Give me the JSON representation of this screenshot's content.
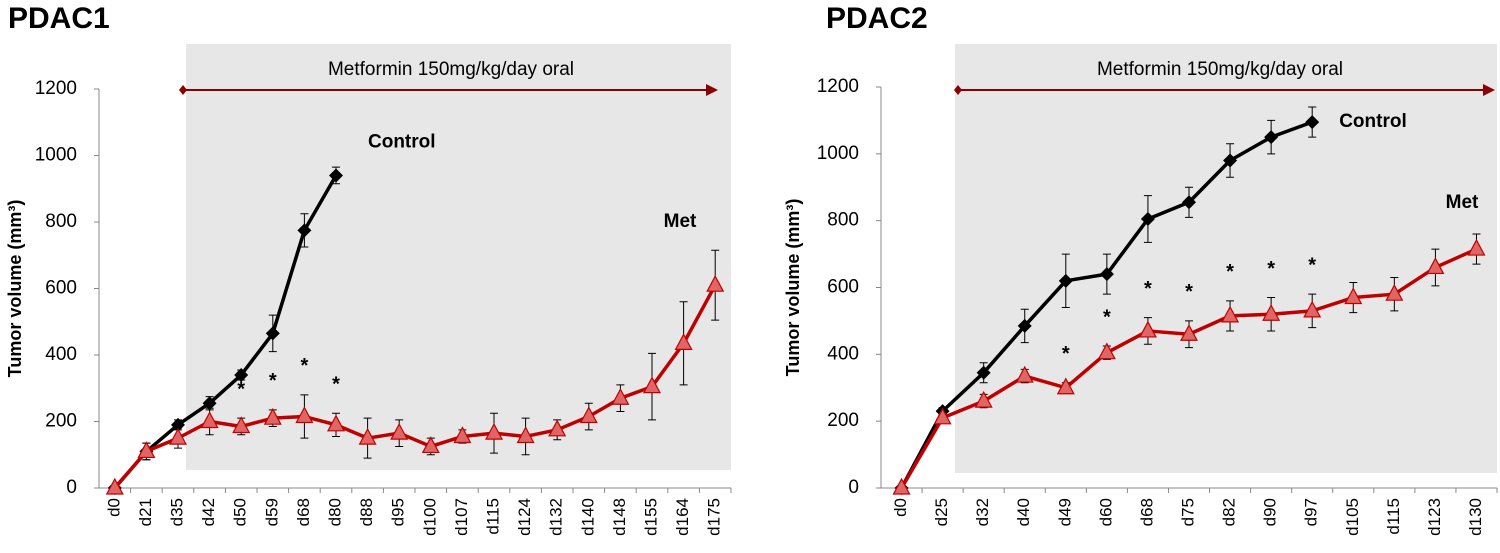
{
  "chart_data": [
    {
      "type": "line",
      "title": "PDAC1",
      "annotation": "Metformin 150mg/kg/day oral",
      "y_label": "Tumor volume (mm³)",
      "categories": [
        "d0",
        "d21",
        "d35",
        "d42",
        "d50",
        "d59",
        "d68",
        "d80",
        "d88",
        "d95",
        "d100",
        "d107",
        "d115",
        "d124",
        "d132",
        "d140",
        "d148",
        "d155",
        "d164",
        "d175"
      ],
      "series": [
        {
          "name": "Control",
          "color": "#000000",
          "marker": "diamond",
          "values": [
            0,
            110,
            190,
            255,
            340,
            465,
            775,
            940,
            null,
            null,
            null,
            null,
            null,
            null,
            null,
            null,
            null,
            null,
            null,
            null
          ],
          "errors": [
            0,
            25,
            15,
            20,
            15,
            55,
            50,
            25,
            null,
            null,
            null,
            null,
            null,
            null,
            null,
            null,
            null,
            null,
            null,
            null
          ]
        },
        {
          "name": "Met",
          "color": "#c00000",
          "marker": "triangle",
          "values": [
            0,
            110,
            150,
            200,
            185,
            210,
            215,
            190,
            150,
            165,
            125,
            155,
            165,
            155,
            175,
            215,
            270,
            305,
            435,
            610
          ],
          "errors": [
            0,
            25,
            30,
            40,
            25,
            25,
            65,
            35,
            60,
            40,
            25,
            20,
            60,
            55,
            30,
            40,
            40,
            100,
            125,
            105
          ]
        }
      ],
      "significance": [
        {
          "category": "d50",
          "label": "*"
        },
        {
          "category": "d59",
          "label": "*"
        },
        {
          "category": "d68",
          "label": "*"
        },
        {
          "category": "d80",
          "label": "*"
        }
      ],
      "ylim": [
        0,
        1200
      ],
      "yticks": [
        0,
        200,
        400,
        600,
        800,
        1000,
        1200
      ],
      "grid": false
    },
    {
      "type": "line",
      "title": "PDAC2",
      "annotation": "Metformin 150mg/kg/day oral",
      "y_label": "Tumor volume (mm³)",
      "categories": [
        "d0",
        "d25",
        "d32",
        "d40",
        "d49",
        "d60",
        "d68",
        "d75",
        "d82",
        "d90",
        "d97",
        "d105",
        "d115",
        "d123",
        "d130"
      ],
      "series": [
        {
          "name": "Control",
          "color": "#000000",
          "marker": "diamond",
          "values": [
            0,
            230,
            345,
            485,
            620,
            640,
            805,
            855,
            980,
            1050,
            1095,
            null,
            null,
            null,
            null
          ],
          "errors": [
            0,
            10,
            30,
            50,
            80,
            60,
            70,
            45,
            50,
            50,
            45,
            null,
            null,
            null,
            null
          ]
        },
        {
          "name": "Met",
          "color": "#c00000",
          "marker": "triangle",
          "values": [
            0,
            210,
            260,
            335,
            300,
            405,
            470,
            460,
            515,
            520,
            530,
            570,
            580,
            660,
            715
          ],
          "errors": [
            0,
            15,
            20,
            20,
            15,
            20,
            40,
            40,
            45,
            50,
            50,
            45,
            50,
            55,
            45
          ]
        }
      ],
      "significance": [
        {
          "category": "d49",
          "label": "*"
        },
        {
          "category": "d60",
          "label": "*"
        },
        {
          "category": "d68",
          "label": "*"
        },
        {
          "category": "d75",
          "label": "*"
        },
        {
          "category": "d82",
          "label": "*"
        },
        {
          "category": "d90",
          "label": "*"
        },
        {
          "category": "d97",
          "label": "*"
        }
      ],
      "ylim": [
        0,
        1200
      ],
      "yticks": [
        0,
        200,
        400,
        600,
        800,
        1000,
        1200
      ],
      "grid": false
    }
  ]
}
